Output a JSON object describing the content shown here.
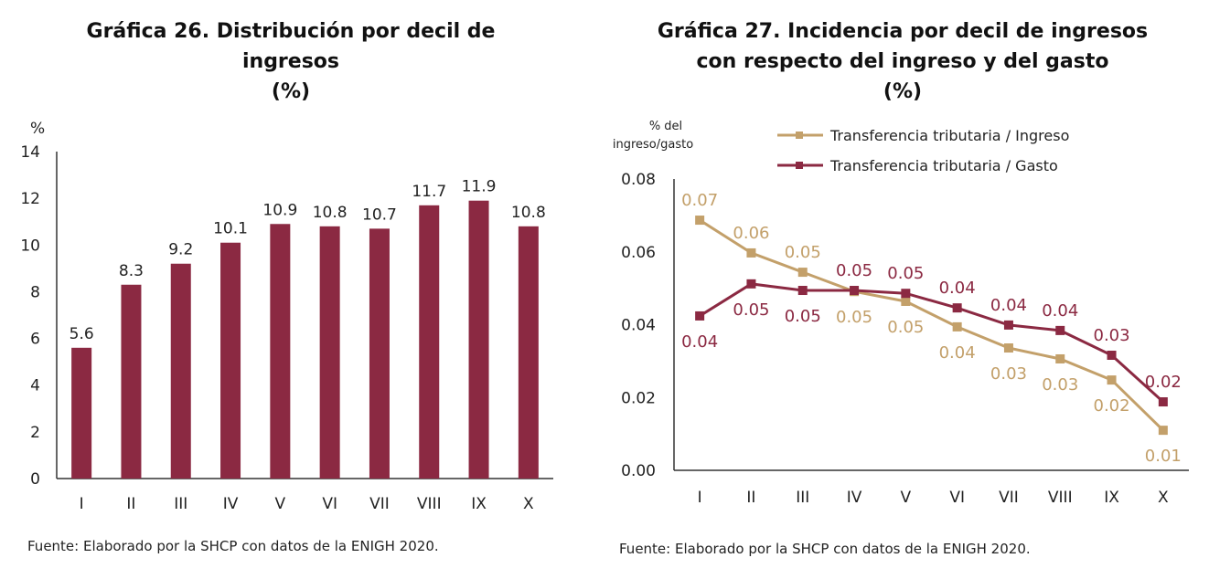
{
  "colors": {
    "maroon": "#8b2942",
    "gold": "#c3a06a",
    "axis": "#333333"
  },
  "chart_data": [
    {
      "type": "bar",
      "title": [
        "Gráfica 26. Distribución por decil de",
        "ingresos",
        "(%)"
      ],
      "ylabel": "%",
      "categories": [
        "I",
        "II",
        "III",
        "IV",
        "V",
        "VI",
        "VII",
        "VIII",
        "IX",
        "X"
      ],
      "values": [
        5.6,
        8.3,
        9.2,
        10.1,
        10.9,
        10.8,
        10.7,
        11.7,
        11.9,
        10.8
      ],
      "data_labels": [
        "5.6",
        "8.3",
        "9.2",
        "10.1",
        "10.9",
        "10.8",
        "10.7",
        "11.7",
        "11.9",
        "10.8"
      ],
      "ylim": [
        0,
        14
      ],
      "yticks": [
        "0",
        "2",
        "4",
        "6",
        "8",
        "10",
        "12",
        "14"
      ],
      "grid": false,
      "source": "Fuente: Elaborado por la SHCP con datos de la ENIGH 2020."
    },
    {
      "type": "line",
      "title": [
        "Gráfica 27. Incidencia por decil de ingresos",
        "con respecto del ingreso y del gasto",
        "(%)"
      ],
      "ylabel": [
        "% del",
        "ingreso/gasto"
      ],
      "categories": [
        "I",
        "II",
        "III",
        "IV",
        "V",
        "VI",
        "VII",
        "VIII",
        "IX",
        "X"
      ],
      "ylim": [
        0,
        0.08
      ],
      "yticks": [
        "0.00",
        "0.02",
        "0.04",
        "0.06",
        "0.08"
      ],
      "grid": false,
      "legend_position": "top",
      "series": [
        {
          "name": "Transferencia tributaria / Ingreso",
          "color": "#c3a06a",
          "values": [
            0.0687,
            0.0597,
            0.0544,
            0.0491,
            0.0464,
            0.0394,
            0.0336,
            0.0306,
            0.0248,
            0.011
          ],
          "data_labels": [
            "0.07",
            "0.06",
            "0.05",
            "0.05",
            "0.05",
            "0.04",
            "0.03",
            "0.03",
            "0.02",
            "0.01"
          ]
        },
        {
          "name": "Transferencia tributaria / Gasto",
          "color": "#8b2942",
          "values": [
            0.0424,
            0.0512,
            0.0494,
            0.0494,
            0.0486,
            0.0446,
            0.0399,
            0.0384,
            0.0316,
            0.0188
          ],
          "data_labels": [
            "0.04",
            "0.05",
            "0.05",
            "0.05",
            "0.05",
            "0.04",
            "0.04",
            "0.04",
            "0.03",
            "0.02"
          ]
        }
      ],
      "source": "Fuente: Elaborado por la SHCP con datos de la ENIGH 2020."
    }
  ]
}
